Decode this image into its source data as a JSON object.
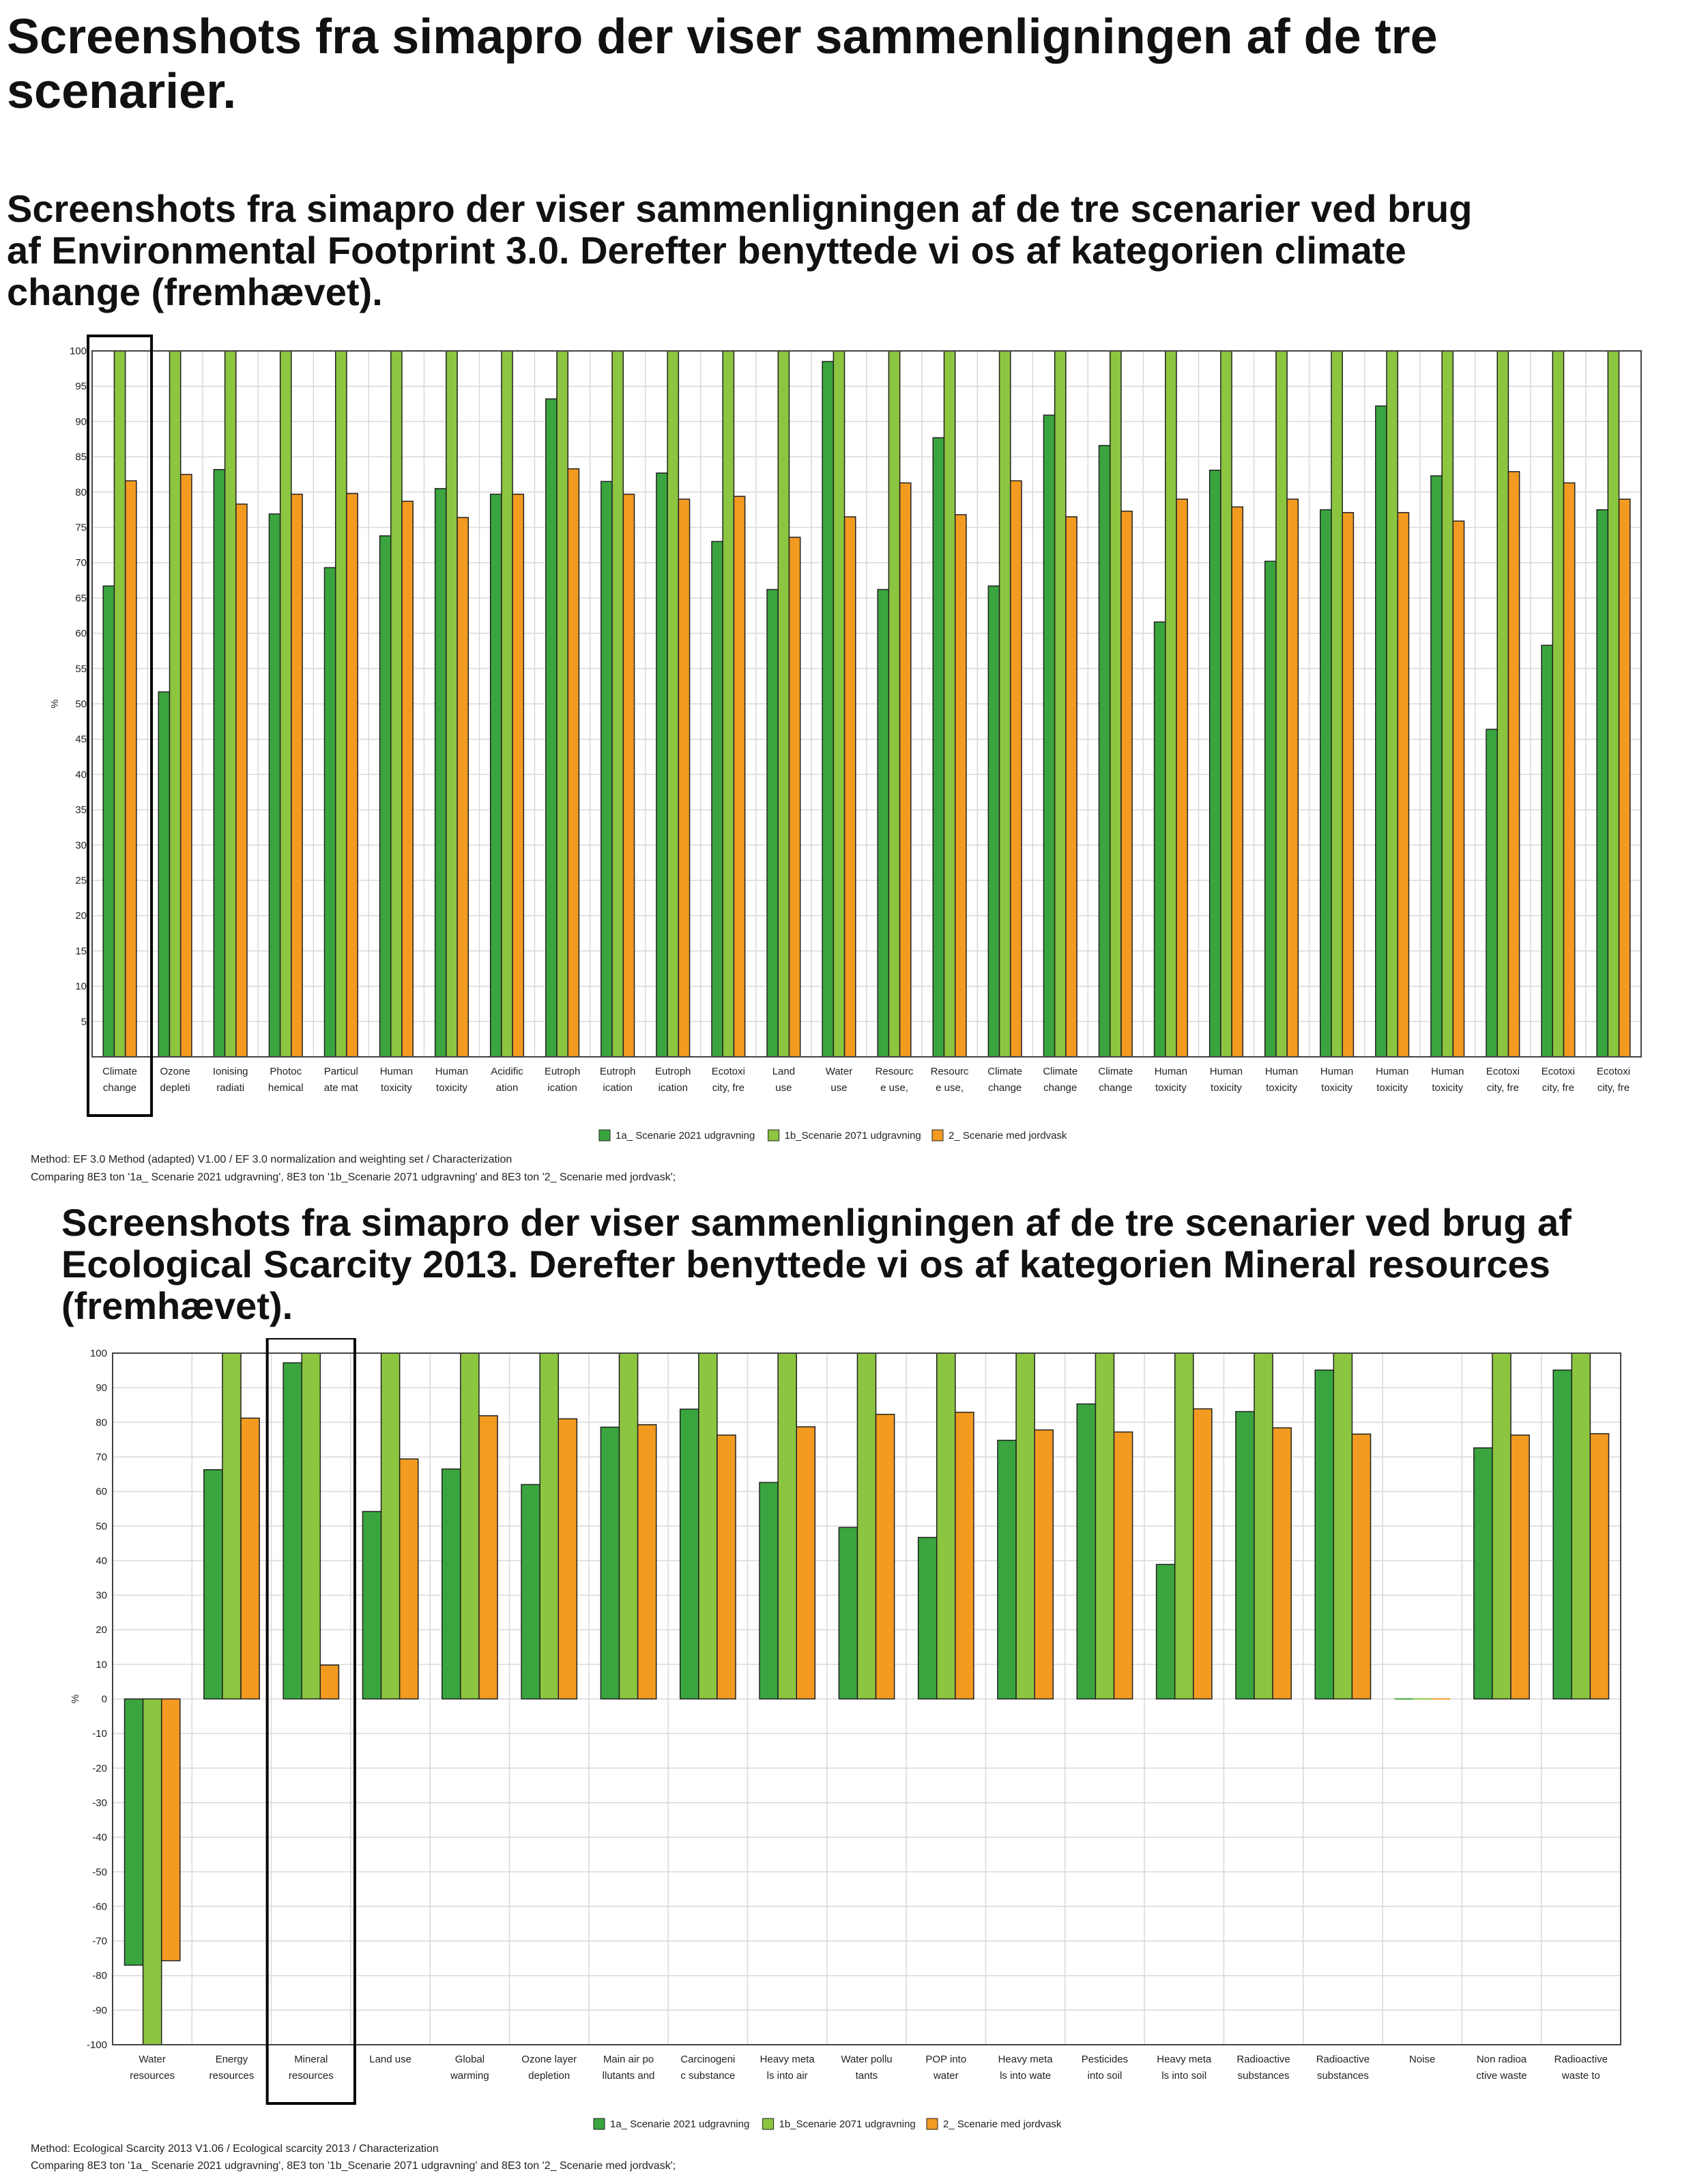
{
  "page": {
    "title": "Screenshots fra simapro  der viser sammenligningen af de tre scenarier."
  },
  "section1": {
    "heading": "Screenshots fra simapro  der viser sammenligningen af de tre scenarier ved brug af Environmental Footprint 3.0. Derefter benyttede vi os af kategorien climate change (fremhævet).",
    "method_line": "Method: EF 3.0 Method (adapted) V1.00 / EF 3.0 normalization and weighting set / Characterization",
    "comparing_line": "Comparing 8E3 ton '1a_ Scenarie 2021 udgravning', 8E3 ton '1b_Scenarie 2071 udgravning' and 8E3 ton '2_ Scenarie med jordvask';"
  },
  "section2": {
    "heading": "Screenshots fra simapro  der viser sammenligningen af de tre scenarier ved brug af Ecological Scarcity 2013. Derefter benyttede vi os af kategorien Mineral resources (fremhævet).",
    "method_line": "Method: Ecological Scarcity 2013 V1.06 / Ecological scarcity 2013 / Characterization",
    "comparing_line": "Comparing 8E3 ton '1a_ Scenarie 2021 udgravning', 8E3 ton '1b_Scenarie 2071 udgravning' and 8E3 ton '2_ Scenarie med jordvask';"
  },
  "colors": {
    "series_1a": "#3aa53f",
    "series_1b": "#8cc540",
    "series_2": "#f39a21",
    "grid": "#d9d9d9",
    "highlight_box": "#000000"
  },
  "chart_data": [
    {
      "type": "bar",
      "ylabel": "%",
      "ylim": [
        0,
        100
      ],
      "yticks": [
        5,
        10,
        15,
        20,
        25,
        30,
        35,
        40,
        45,
        50,
        55,
        60,
        65,
        70,
        75,
        80,
        85,
        90,
        95,
        100
      ],
      "grid": true,
      "legend_position": "bottom",
      "highlighted_category_index": 0,
      "categories": [
        [
          "Climate",
          "change"
        ],
        [
          "Ozone",
          "depleti"
        ],
        [
          "Ionising",
          "radiati"
        ],
        [
          "Photoc",
          "hemical"
        ],
        [
          "Particul",
          "ate mat"
        ],
        [
          "Human",
          "toxicity"
        ],
        [
          "Human",
          "toxicity"
        ],
        [
          "Acidific",
          "ation"
        ],
        [
          "Eutroph",
          "ication"
        ],
        [
          "Eutroph",
          "ication"
        ],
        [
          "Eutroph",
          "ication"
        ],
        [
          "Ecotoxi",
          "city, fre"
        ],
        [
          "Land",
          "use"
        ],
        [
          "Water",
          "use"
        ],
        [
          "Resourc",
          "e use,"
        ],
        [
          "Resourc",
          "e use,"
        ],
        [
          "Climate",
          "change"
        ],
        [
          "Climate",
          "change"
        ],
        [
          "Climate",
          "change"
        ],
        [
          "Human",
          "toxicity"
        ],
        [
          "Human",
          "toxicity"
        ],
        [
          "Human",
          "toxicity"
        ],
        [
          "Human",
          "toxicity"
        ],
        [
          "Human",
          "toxicity"
        ],
        [
          "Human",
          "toxicity"
        ],
        [
          "Ecotoxi",
          "city, fre"
        ],
        [
          "Ecotoxi",
          "city, fre"
        ],
        [
          "Ecotoxi",
          "city, fre"
        ]
      ],
      "series": [
        {
          "name": "1a_ Scenarie 2021 udgravning",
          "values": [
            66.7,
            51.7,
            83.2,
            76.9,
            69.3,
            73.8,
            80.5,
            79.7,
            93.2,
            81.5,
            82.7,
            73.0,
            66.2,
            98.5,
            66.2,
            87.7,
            66.7,
            90.9,
            86.6,
            61.6,
            83.1,
            70.2,
            77.5,
            92.2,
            82.3,
            46.4,
            58.3,
            77.5
          ]
        },
        {
          "name": "1b_Scenarie 2071 udgravning",
          "values": [
            100,
            100,
            100,
            100,
            100,
            100,
            100,
            100,
            100,
            100,
            100,
            100,
            100,
            100,
            100,
            100,
            100,
            100,
            100,
            100,
            100,
            100,
            100,
            100,
            100,
            100,
            100,
            100
          ]
        },
        {
          "name": "2_ Scenarie med jordvask",
          "values": [
            81.6,
            82.5,
            78.3,
            79.7,
            79.8,
            78.7,
            76.4,
            79.7,
            83.3,
            79.7,
            79.0,
            79.4,
            73.6,
            76.5,
            81.3,
            76.8,
            81.6,
            76.5,
            77.3,
            79.0,
            77.9,
            79.0,
            77.1,
            77.1,
            75.9,
            82.9,
            81.3,
            79.0
          ]
        }
      ]
    },
    {
      "type": "bar",
      "ylabel": "%",
      "ylim": [
        -100,
        100
      ],
      "yticks": [
        -100,
        -90,
        -80,
        -70,
        -60,
        -50,
        -40,
        -30,
        -20,
        -10,
        0,
        10,
        20,
        30,
        40,
        50,
        60,
        70,
        80,
        90,
        100
      ],
      "grid": true,
      "legend_position": "bottom",
      "highlighted_category_index": 2,
      "categories": [
        [
          "Water",
          "resources"
        ],
        [
          "Energy",
          "resources"
        ],
        [
          "Mineral",
          "resources"
        ],
        [
          "Land use",
          ""
        ],
        [
          "Global",
          "warming"
        ],
        [
          "Ozone layer",
          "depletion"
        ],
        [
          "Main air po",
          "llutants and"
        ],
        [
          "Carcinogeni",
          "c substance"
        ],
        [
          "Heavy meta",
          "ls into air"
        ],
        [
          "Water pollu",
          "tants"
        ],
        [
          "POP into",
          "water"
        ],
        [
          "Heavy meta",
          "ls into wate"
        ],
        [
          "Pesticides",
          "into soil"
        ],
        [
          "Heavy meta",
          "ls into soil"
        ],
        [
          "Radioactive",
          "substances"
        ],
        [
          "Radioactive",
          "substances"
        ],
        [
          "Noise",
          ""
        ],
        [
          "Non radioa",
          "ctive waste"
        ],
        [
          "Radioactive",
          "waste to"
        ]
      ],
      "series": [
        {
          "name": "1a_ Scenarie 2021 udgravning",
          "values": [
            -77,
            66.3,
            97.2,
            54.2,
            66.5,
            62.0,
            78.6,
            83.8,
            62.6,
            49.6,
            46.7,
            74.8,
            85.3,
            38.9,
            83.1,
            95.1,
            0,
            72.6,
            95.1
          ]
        },
        {
          "name": "1b_Scenarie 2071 udgravning",
          "values": [
            -100,
            100,
            100,
            100,
            100,
            100,
            100,
            100,
            100,
            100,
            100,
            100,
            100,
            100,
            100,
            100,
            0,
            100,
            100
          ]
        },
        {
          "name": "2_ Scenarie med jordvask",
          "values": [
            -75.7,
            81.2,
            9.8,
            69.4,
            81.9,
            81.0,
            79.3,
            76.3,
            78.7,
            82.3,
            82.9,
            77.8,
            77.2,
            83.9,
            78.4,
            76.6,
            0,
            76.3,
            76.7
          ]
        }
      ]
    }
  ]
}
